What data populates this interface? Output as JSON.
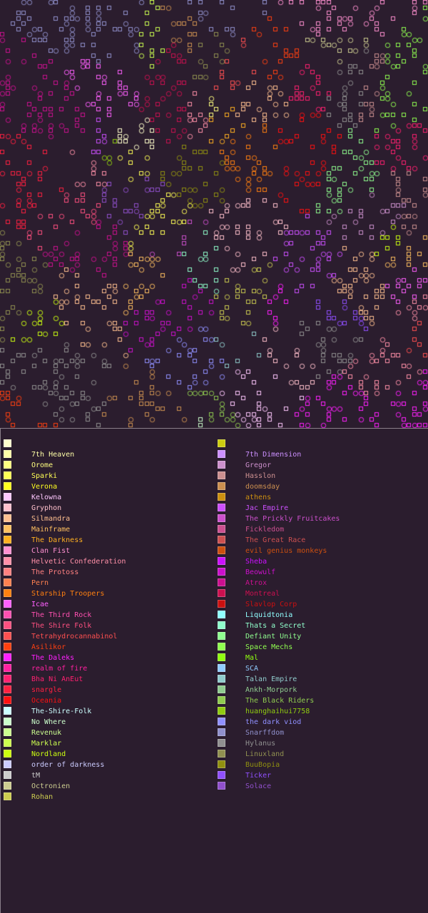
{
  "legend": {
    "left": [
      {
        "label": "",
        "color": "#ffffcc"
      },
      {
        "label": "7th Heaven",
        "color": "#ffffa8"
      },
      {
        "label": "Orome",
        "color": "#ffff80"
      },
      {
        "label": "Sparki",
        "color": "#ffff55"
      },
      {
        "label": "Verona",
        "color": "#ffff20"
      },
      {
        "label": "Kelowna",
        "color": "#ffc8ff"
      },
      {
        "label": "Gryphon",
        "color": "#ffc0cc"
      },
      {
        "label": "Silmandra",
        "color": "#ffc090"
      },
      {
        "label": "Mainframe",
        "color": "#ffc060"
      },
      {
        "label": "The Darkness",
        "color": "#ffb020"
      },
      {
        "label": "Clan Fist",
        "color": "#ff90d0"
      },
      {
        "label": "Helvetic Confederation",
        "color": "#ff90a8"
      },
      {
        "label": "The Protoss",
        "color": "#ff8080"
      },
      {
        "label": "Pern",
        "color": "#ff8050"
      },
      {
        "label": "Starship Troopers",
        "color": "#ff8010"
      },
      {
        "label": "Icae",
        "color": "#ff60ff"
      },
      {
        "label": "The Third Rock",
        "color": "#ff50b0"
      },
      {
        "label": "The Shire Folk",
        "color": "#ff5080"
      },
      {
        "label": "Tetrahydrocannabinol",
        "color": "#ff5050"
      },
      {
        "label": "Asilikor",
        "color": "#ff4010"
      },
      {
        "label": "The Daleks",
        "color": "#ff20ff"
      },
      {
        "label": "realm of fire",
        "color": "#ff20a0"
      },
      {
        "label": "Bha Ni AnEut",
        "color": "#ff2070"
      },
      {
        "label": "snargle",
        "color": "#ff2040"
      },
      {
        "label": "Oceania",
        "color": "#ff1010"
      },
      {
        "label": "The-Shire-Folk",
        "color": "#ccffff"
      },
      {
        "label": "No Where",
        "color": "#ccffcc"
      },
      {
        "label": "Revenuk",
        "color": "#ccff90"
      },
      {
        "label": "Marklar",
        "color": "#ccff50"
      },
      {
        "label": "Nordland",
        "color": "#ccff10"
      },
      {
        "label": "order of darkness",
        "color": "#ccccff"
      },
      {
        "label": "tM",
        "color": "#cccccc"
      },
      {
        "label": "Octronien",
        "color": "#cccc90"
      },
      {
        "label": "Rohan",
        "color": "#cccc50"
      }
    ],
    "right": [
      {
        "label": "",
        "color": "#cccc10"
      },
      {
        "label": "7th Dimension",
        "color": "#cc90ff"
      },
      {
        "label": "Gregor",
        "color": "#cc90cc"
      },
      {
        "label": "Hasslon",
        "color": "#cc9090"
      },
      {
        "label": "doomsday",
        "color": "#cc9050"
      },
      {
        "label": "athens",
        "color": "#cc9010"
      },
      {
        "label": "Jac Empire",
        "color": "#cc50ff"
      },
      {
        "label": "The Prickly Fruitcakes",
        "color": "#cc50cc"
      },
      {
        "label": "Fickledom",
        "color": "#cc5090"
      },
      {
        "label": "The Great Race",
        "color": "#cc5050"
      },
      {
        "label": "evil genius monkeys",
        "color": "#cc5010"
      },
      {
        "label": "Sheba",
        "color": "#cc10ff"
      },
      {
        "label": "Beowulf",
        "color": "#cc10cc"
      },
      {
        "label": "Atrox",
        "color": "#cc1090"
      },
      {
        "label": "Montreal",
        "color": "#cc1050"
      },
      {
        "label": "Slavlop Corp",
        "color": "#cc1010"
      },
      {
        "label": "Liquidtonia",
        "color": "#90ffff"
      },
      {
        "label": "Thats a Secret",
        "color": "#90ffcc"
      },
      {
        "label": "Defiant Unity",
        "color": "#90ff90"
      },
      {
        "label": "Space Mechs",
        "color": "#90ff50"
      },
      {
        "label": "Mal",
        "color": "#90ff10"
      },
      {
        "label": "SCA",
        "color": "#90ccff"
      },
      {
        "label": "Talan Empire",
        "color": "#90cccc"
      },
      {
        "label": "Ankh-Morpork",
        "color": "#90cc90"
      },
      {
        "label": "The Black Riders",
        "color": "#90cc50"
      },
      {
        "label": "huanghaihui7758",
        "color": "#90cc10"
      },
      {
        "label": "the dark viod",
        "color": "#9090ff"
      },
      {
        "label": "Snarffdom",
        "color": "#9090cc"
      },
      {
        "label": "Hylanus",
        "color": "#909090"
      },
      {
        "label": "Linuxland",
        "color": "#909050"
      },
      {
        "label": "BuuBopia",
        "color": "#909010"
      },
      {
        "label": "Ticker",
        "color": "#9050ff"
      },
      {
        "label": "Solace",
        "color": "#9050cc"
      }
    ]
  }
}
